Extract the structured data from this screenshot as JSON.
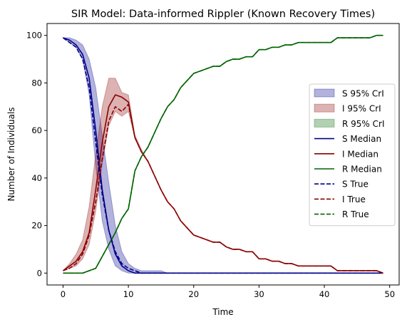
{
  "chart_data": {
    "type": "line",
    "title": "SIR Model: Data-informed Rippler (Known Recovery Times)",
    "xlabel": "Time",
    "ylabel": "Number of Individuals",
    "xlim": [
      -2.45,
      51.45
    ],
    "ylim": [
      -5,
      105
    ],
    "xticks": [
      0,
      10,
      20,
      30,
      40,
      50
    ],
    "yticks": [
      0,
      20,
      40,
      60,
      80,
      100
    ],
    "grid": false,
    "legend_position": "center-right",
    "legend": [
      {
        "label": "S 95% CrI",
        "kind": "band",
        "color": "#00008b"
      },
      {
        "label": "I 95% CrI",
        "kind": "band",
        "color": "#8b0000"
      },
      {
        "label": "R 95% CrI",
        "kind": "band",
        "color": "#006400"
      },
      {
        "label": "S Median",
        "kind": "line",
        "color": "#00008b"
      },
      {
        "label": "I Median",
        "kind": "line",
        "color": "#8b0000"
      },
      {
        "label": "R Median",
        "kind": "line",
        "color": "#006400"
      },
      {
        "label": "S True",
        "kind": "dash",
        "color": "#00008b"
      },
      {
        "label": "I True",
        "kind": "dash",
        "color": "#8b0000"
      },
      {
        "label": "R True",
        "kind": "dash",
        "color": "#006400"
      }
    ],
    "x": [
      0,
      1,
      2,
      3,
      4,
      5,
      6,
      7,
      8,
      9,
      10,
      11,
      12,
      13,
      14,
      15,
      16,
      17,
      18,
      19,
      20,
      21,
      22,
      23,
      24,
      25,
      26,
      27,
      28,
      29,
      30,
      31,
      32,
      33,
      34,
      35,
      36,
      37,
      38,
      39,
      40,
      41,
      42,
      43,
      44,
      45,
      46,
      47,
      48,
      49
    ],
    "series": [
      {
        "name": "S Median",
        "color": "#00008b",
        "style": "solid",
        "values": [
          99,
          98,
          96,
          92,
          82,
          60,
          35,
          18,
          8,
          3,
          1,
          0,
          0,
          0,
          0,
          0,
          0,
          0,
          0,
          0,
          0,
          0,
          0,
          0,
          0,
          0,
          0,
          0,
          0,
          0,
          0,
          0,
          0,
          0,
          0,
          0,
          0,
          0,
          0,
          0,
          0,
          0,
          0,
          0,
          0,
          0,
          0,
          0,
          0,
          0
        ]
      },
      {
        "name": "I Median",
        "color": "#8b0000",
        "style": "solid",
        "values": [
          1,
          3,
          5,
          9,
          17,
          35,
          55,
          70,
          75,
          74,
          72,
          57,
          51,
          47,
          41,
          35,
          30,
          27,
          22,
          19,
          16,
          15,
          14,
          13,
          13,
          11,
          10,
          10,
          9,
          9,
          6,
          6,
          5,
          5,
          4,
          4,
          3,
          3,
          3,
          3,
          3,
          3,
          1,
          1,
          1,
          1,
          1,
          1,
          1,
          0
        ]
      },
      {
        "name": "R Median",
        "color": "#006400",
        "style": "solid",
        "values": [
          0,
          0,
          0,
          0,
          1,
          2,
          7,
          12,
          17,
          23,
          27,
          43,
          49,
          53,
          59,
          65,
          70,
          73,
          78,
          81,
          84,
          85,
          86,
          87,
          87,
          89,
          90,
          90,
          91,
          91,
          94,
          94,
          95,
          95,
          96,
          96,
          97,
          97,
          97,
          97,
          97,
          97,
          99,
          99,
          99,
          99,
          99,
          99,
          100,
          100
        ]
      },
      {
        "name": "S True",
        "color": "#00008b",
        "style": "dashed",
        "values": [
          99,
          97,
          95,
          90,
          78,
          55,
          33,
          18,
          9,
          4,
          2,
          1,
          0,
          0,
          0,
          0,
          0,
          0,
          0,
          0,
          0,
          0,
          0,
          0,
          0,
          0,
          0,
          0,
          0,
          0,
          0,
          0,
          0,
          0,
          0,
          0,
          0,
          0,
          0,
          0,
          0,
          0,
          0,
          0,
          0,
          0,
          0,
          0,
          0,
          0
        ]
      },
      {
        "name": "I True",
        "color": "#8b0000",
        "style": "dashed",
        "values": [
          1,
          2,
          4,
          8,
          16,
          30,
          48,
          64,
          70,
          68,
          71,
          57,
          51,
          47,
          41,
          35,
          30,
          27,
          22,
          19,
          16,
          15,
          14,
          13,
          13,
          11,
          10,
          10,
          9,
          9,
          6,
          6,
          5,
          5,
          4,
          4,
          3,
          3,
          3,
          3,
          3,
          3,
          1,
          1,
          1,
          1,
          1,
          1,
          1,
          0
        ]
      },
      {
        "name": "R True",
        "color": "#006400",
        "style": "dashed",
        "values": [
          0,
          0,
          0,
          0,
          1,
          2,
          7,
          12,
          17,
          23,
          27,
          43,
          49,
          53,
          59,
          65,
          70,
          73,
          78,
          81,
          84,
          85,
          86,
          87,
          87,
          89,
          90,
          90,
          91,
          91,
          94,
          94,
          95,
          95,
          96,
          96,
          97,
          97,
          97,
          97,
          97,
          97,
          99,
          99,
          99,
          99,
          99,
          99,
          100,
          100
        ]
      }
    ],
    "bands": [
      {
        "name": "S 95% CrI",
        "color": "#00008b",
        "lower": [
          99,
          97,
          95,
          90,
          75,
          45,
          22,
          10,
          3,
          1,
          0,
          0,
          0,
          0,
          0,
          0,
          0,
          0,
          0,
          0,
          0,
          0,
          0,
          0,
          0,
          0,
          0,
          0,
          0,
          0,
          0,
          0,
          0,
          0,
          0,
          0,
          0,
          0,
          0,
          0,
          0,
          0,
          0,
          0,
          0,
          0,
          0,
          0,
          0,
          0
        ],
        "upper": [
          99,
          99,
          98,
          96,
          90,
          78,
          58,
          38,
          20,
          9,
          4,
          2,
          1,
          1,
          1,
          1,
          0,
          0,
          0,
          0,
          0,
          0,
          0,
          0,
          0,
          0,
          0,
          0,
          0,
          0,
          0,
          0,
          0,
          0,
          0,
          0,
          0,
          0,
          0,
          0,
          0,
          0,
          0,
          0,
          0,
          0,
          0,
          0,
          0,
          0
        ]
      },
      {
        "name": "I 95% CrI",
        "color": "#8b0000",
        "lower": [
          1,
          2,
          3,
          6,
          12,
          26,
          46,
          62,
          68,
          66,
          68,
          57,
          51,
          47,
          41,
          35,
          30,
          27,
          22,
          19,
          16,
          15,
          14,
          13,
          13,
          11,
          10,
          10,
          9,
          9,
          6,
          6,
          5,
          5,
          4,
          4,
          3,
          3,
          3,
          3,
          3,
          3,
          1,
          1,
          1,
          1,
          1,
          1,
          1,
          0
        ],
        "upper": [
          1,
          4,
          8,
          14,
          28,
          50,
          70,
          82,
          82,
          76,
          75,
          58,
          52,
          47,
          41,
          35,
          30,
          27,
          22,
          19,
          16,
          15,
          14,
          13,
          13,
          11,
          10,
          10,
          9,
          9,
          6,
          6,
          5,
          5,
          4,
          4,
          3,
          3,
          3,
          3,
          3,
          3,
          1,
          1,
          1,
          1,
          1,
          1,
          1,
          0
        ]
      },
      {
        "name": "R 95% CrI",
        "color": "#006400",
        "lower": [
          0,
          0,
          0,
          0,
          1,
          2,
          7,
          12,
          17,
          23,
          27,
          43,
          49,
          53,
          59,
          65,
          70,
          73,
          78,
          81,
          84,
          85,
          86,
          87,
          87,
          89,
          90,
          90,
          91,
          91,
          94,
          94,
          95,
          95,
          96,
          96,
          97,
          97,
          97,
          97,
          97,
          97,
          99,
          99,
          99,
          99,
          99,
          99,
          100,
          100
        ],
        "upper": [
          0,
          0,
          0,
          0,
          1,
          2,
          7,
          12,
          17,
          23,
          27,
          43,
          49,
          53,
          59,
          65,
          70,
          73,
          78,
          81,
          84,
          85,
          86,
          87,
          87,
          89,
          90,
          90,
          91,
          91,
          94,
          94,
          95,
          95,
          96,
          96,
          97,
          97,
          97,
          97,
          97,
          97,
          99,
          99,
          99,
          99,
          99,
          99,
          100,
          100
        ]
      }
    ]
  }
}
